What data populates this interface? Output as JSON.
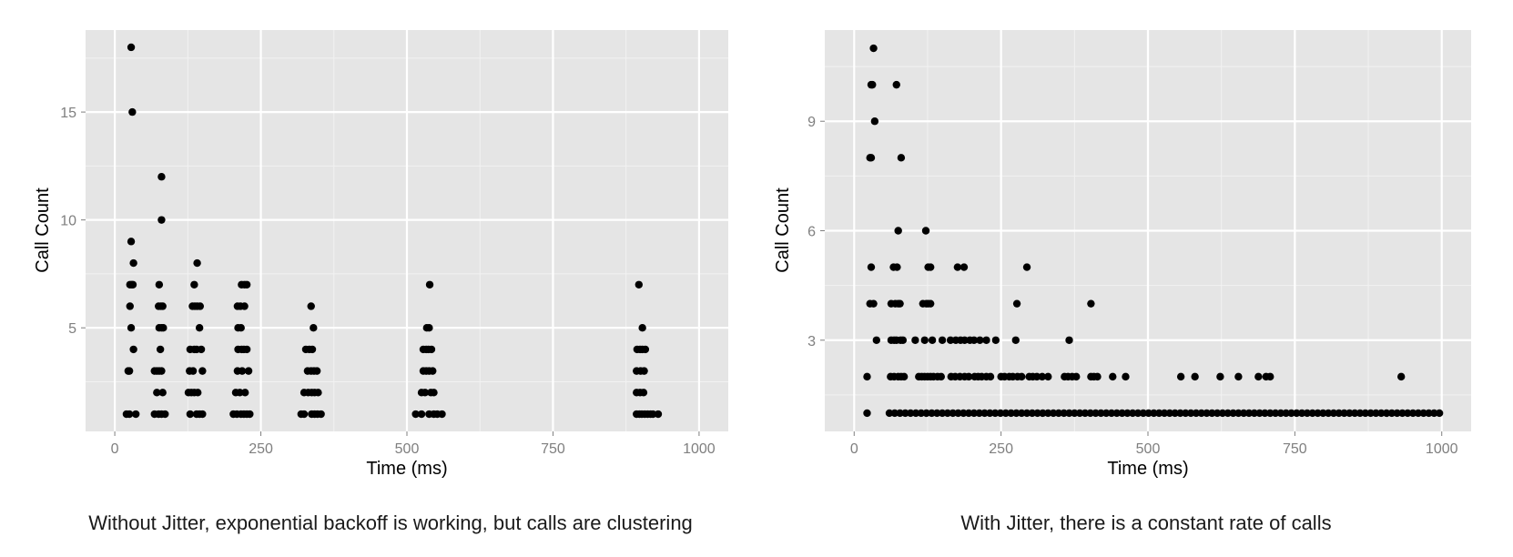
{
  "chart_data": [
    {
      "type": "scatter",
      "caption": "Without Jitter, exponential backoff is working, but calls are clustering",
      "xlabel": "Time (ms)",
      "ylabel": "Call Count",
      "xlim": [
        -50,
        1050
      ],
      "ylim": [
        0.2,
        18.8
      ],
      "xticks": [
        0,
        250,
        500,
        750,
        1000
      ],
      "yticks": [
        5,
        10,
        15
      ],
      "grid": true,
      "points": [
        [
          28,
          18
        ],
        [
          30,
          15
        ],
        [
          80,
          12
        ],
        [
          80,
          10
        ],
        [
          28,
          9
        ],
        [
          32,
          8
        ],
        [
          26,
          7
        ],
        [
          29,
          7
        ],
        [
          31,
          7
        ],
        [
          26,
          6
        ],
        [
          28,
          5
        ],
        [
          32,
          4
        ],
        [
          23,
          3
        ],
        [
          25,
          3
        ],
        [
          20,
          1
        ],
        [
          25,
          1
        ],
        [
          36,
          1
        ],
        [
          76,
          7
        ],
        [
          75,
          6
        ],
        [
          79,
          6
        ],
        [
          82,
          6
        ],
        [
          76,
          5
        ],
        [
          80,
          5
        ],
        [
          83,
          5
        ],
        [
          78,
          4
        ],
        [
          68,
          3
        ],
        [
          72,
          3
        ],
        [
          76,
          3
        ],
        [
          80,
          3
        ],
        [
          72,
          2
        ],
        [
          82,
          2
        ],
        [
          68,
          1
        ],
        [
          75,
          1
        ],
        [
          80,
          1
        ],
        [
          86,
          1
        ],
        [
          141,
          8
        ],
        [
          136,
          7
        ],
        [
          133,
          6
        ],
        [
          137,
          6
        ],
        [
          141,
          6
        ],
        [
          146,
          6
        ],
        [
          145,
          5
        ],
        [
          129,
          4
        ],
        [
          136,
          4
        ],
        [
          140,
          4
        ],
        [
          148,
          4
        ],
        [
          128,
          3
        ],
        [
          134,
          3
        ],
        [
          150,
          3
        ],
        [
          126,
          2
        ],
        [
          131,
          2
        ],
        [
          136,
          2
        ],
        [
          142,
          2
        ],
        [
          129,
          1
        ],
        [
          140,
          1
        ],
        [
          145,
          1
        ],
        [
          150,
          1
        ],
        [
          217,
          7
        ],
        [
          222,
          7
        ],
        [
          226,
          7
        ],
        [
          210,
          6
        ],
        [
          215,
          6
        ],
        [
          222,
          6
        ],
        [
          211,
          5
        ],
        [
          216,
          5
        ],
        [
          211,
          4
        ],
        [
          217,
          4
        ],
        [
          221,
          4
        ],
        [
          226,
          4
        ],
        [
          210,
          3
        ],
        [
          218,
          3
        ],
        [
          229,
          3
        ],
        [
          207,
          2
        ],
        [
          214,
          2
        ],
        [
          223,
          2
        ],
        [
          203,
          1
        ],
        [
          209,
          1
        ],
        [
          216,
          1
        ],
        [
          221,
          1
        ],
        [
          226,
          1
        ],
        [
          231,
          1
        ],
        [
          336,
          6
        ],
        [
          340,
          5
        ],
        [
          327,
          4
        ],
        [
          333,
          4
        ],
        [
          338,
          4
        ],
        [
          330,
          3
        ],
        [
          336,
          3
        ],
        [
          341,
          3
        ],
        [
          346,
          3
        ],
        [
          324,
          2
        ],
        [
          331,
          2
        ],
        [
          337,
          2
        ],
        [
          342,
          2
        ],
        [
          348,
          2
        ],
        [
          319,
          1
        ],
        [
          324,
          1
        ],
        [
          337,
          1
        ],
        [
          342,
          1
        ],
        [
          347,
          1
        ],
        [
          353,
          1
        ],
        [
          539,
          7
        ],
        [
          534,
          5
        ],
        [
          538,
          5
        ],
        [
          528,
          4
        ],
        [
          533,
          4
        ],
        [
          537,
          4
        ],
        [
          542,
          4
        ],
        [
          528,
          3
        ],
        [
          533,
          3
        ],
        [
          538,
          3
        ],
        [
          544,
          3
        ],
        [
          525,
          2
        ],
        [
          531,
          2
        ],
        [
          541,
          2
        ],
        [
          546,
          2
        ],
        [
          515,
          1
        ],
        [
          525,
          1
        ],
        [
          538,
          1
        ],
        [
          546,
          1
        ],
        [
          552,
          1
        ],
        [
          560,
          1
        ],
        [
          897,
          7
        ],
        [
          903,
          5
        ],
        [
          894,
          4
        ],
        [
          899,
          4
        ],
        [
          903,
          4
        ],
        [
          908,
          4
        ],
        [
          893,
          3
        ],
        [
          900,
          3
        ],
        [
          906,
          3
        ],
        [
          893,
          2
        ],
        [
          899,
          2
        ],
        [
          905,
          2
        ],
        [
          893,
          1
        ],
        [
          898,
          1
        ],
        [
          902,
          1
        ],
        [
          907,
          1
        ],
        [
          912,
          1
        ],
        [
          917,
          1
        ],
        [
          921,
          1
        ],
        [
          930,
          1
        ]
      ]
    },
    {
      "type": "scatter",
      "caption": "With Jitter, there is a constant rate of calls",
      "xlabel": "Time (ms)",
      "ylabel": "Call Count",
      "xlim": [
        -50,
        1050
      ],
      "ylim": [
        0.5,
        11.5
      ],
      "xticks": [
        0,
        250,
        500,
        750,
        1000
      ],
      "yticks": [
        3,
        6,
        9
      ],
      "grid": true,
      "points": [
        [
          33,
          11
        ],
        [
          29,
          10
        ],
        [
          31,
          10
        ],
        [
          72,
          10
        ],
        [
          35,
          9
        ],
        [
          27,
          8
        ],
        [
          29,
          8
        ],
        [
          80,
          8
        ],
        [
          75,
          6
        ],
        [
          122,
          6
        ],
        [
          29,
          5
        ],
        [
          67,
          5
        ],
        [
          73,
          5
        ],
        [
          126,
          5
        ],
        [
          130,
          5
        ],
        [
          176,
          5
        ],
        [
          187,
          5
        ],
        [
          294,
          5
        ],
        [
          27,
          4
        ],
        [
          33,
          4
        ],
        [
          63,
          4
        ],
        [
          70,
          4
        ],
        [
          75,
          4
        ],
        [
          78,
          4
        ],
        [
          117,
          4
        ],
        [
          123,
          4
        ],
        [
          126,
          4
        ],
        [
          130,
          4
        ],
        [
          277,
          4
        ],
        [
          403,
          4
        ],
        [
          38,
          3
        ],
        [
          63,
          3
        ],
        [
          68,
          3
        ],
        [
          72,
          3
        ],
        [
          79,
          3
        ],
        [
          83,
          3
        ],
        [
          104,
          3
        ],
        [
          120,
          3
        ],
        [
          133,
          3
        ],
        [
          150,
          3
        ],
        [
          164,
          3
        ],
        [
          173,
          3
        ],
        [
          181,
          3
        ],
        [
          188,
          3
        ],
        [
          197,
          3
        ],
        [
          204,
          3
        ],
        [
          214,
          3
        ],
        [
          225,
          3
        ],
        [
          241,
          3
        ],
        [
          275,
          3
        ],
        [
          366,
          3
        ],
        [
          22,
          2
        ],
        [
          62,
          2
        ],
        [
          68,
          2
        ],
        [
          75,
          2
        ],
        [
          80,
          2
        ],
        [
          85,
          2
        ],
        [
          110,
          2
        ],
        [
          115,
          2
        ],
        [
          120,
          2
        ],
        [
          125,
          2
        ],
        [
          130,
          2
        ],
        [
          135,
          2
        ],
        [
          142,
          2
        ],
        [
          148,
          2
        ],
        [
          165,
          2
        ],
        [
          172,
          2
        ],
        [
          180,
          2
        ],
        [
          188,
          2
        ],
        [
          195,
          2
        ],
        [
          205,
          2
        ],
        [
          211,
          2
        ],
        [
          217,
          2
        ],
        [
          225,
          2
        ],
        [
          232,
          2
        ],
        [
          250,
          2
        ],
        [
          256,
          2
        ],
        [
          264,
          2
        ],
        [
          270,
          2
        ],
        [
          278,
          2
        ],
        [
          285,
          2
        ],
        [
          298,
          2
        ],
        [
          304,
          2
        ],
        [
          311,
          2
        ],
        [
          320,
          2
        ],
        [
          330,
          2
        ],
        [
          358,
          2
        ],
        [
          364,
          2
        ],
        [
          371,
          2
        ],
        [
          378,
          2
        ],
        [
          403,
          2
        ],
        [
          408,
          2
        ],
        [
          414,
          2
        ],
        [
          440,
          2
        ],
        [
          462,
          2
        ],
        [
          556,
          2
        ],
        [
          580,
          2
        ],
        [
          623,
          2
        ],
        [
          654,
          2
        ],
        [
          688,
          2
        ],
        [
          701,
          2
        ],
        [
          708,
          2
        ],
        [
          931,
          2
        ]
      ],
      "bottom_row": [
        1,
        [
          22,
          60,
          1000,
          9
        ]
      ]
    }
  ]
}
